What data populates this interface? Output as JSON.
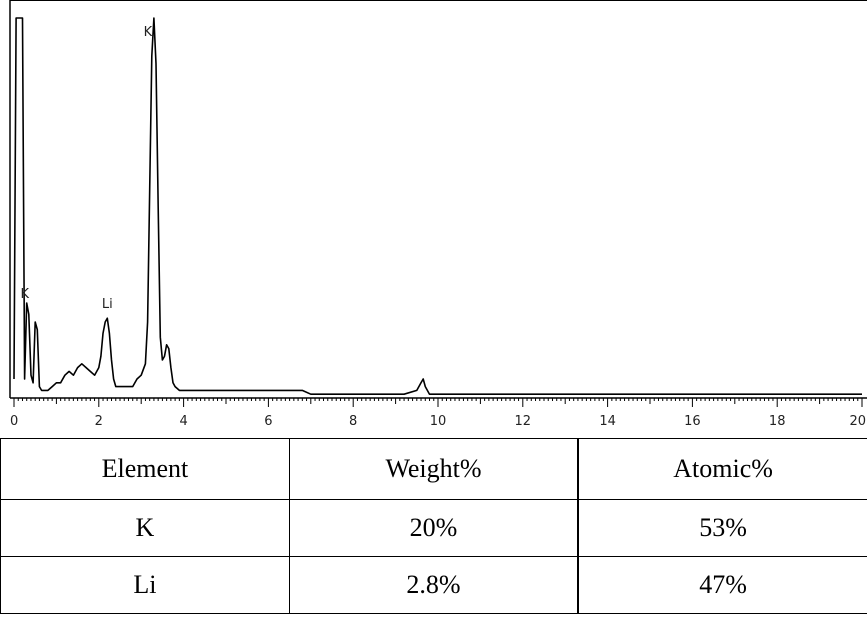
{
  "chart_data": {
    "type": "line",
    "xlim": [
      0,
      20
    ],
    "x_ticks": [
      "0",
      "2",
      "4",
      "6",
      "8",
      "10",
      "12",
      "14",
      "16",
      "18",
      "20"
    ],
    "grid": false,
    "peak_labels": [
      {
        "text": "K",
        "x": 0.3
      },
      {
        "text": "Li",
        "x": 2.2
      },
      {
        "text": "K",
        "x": 3.3
      }
    ],
    "series": [
      {
        "x": [
          0.0,
          0.05,
          0.1,
          0.15,
          0.2,
          0.25,
          0.3,
          0.35,
          0.4,
          0.45,
          0.5,
          0.55,
          0.6,
          0.65,
          0.7,
          0.8,
          0.9,
          1.0,
          1.1,
          1.2,
          1.3,
          1.4,
          1.5,
          1.6,
          1.7,
          1.8,
          1.9,
          2.0,
          2.05,
          2.1,
          2.15,
          2.2,
          2.25,
          2.3,
          2.35,
          2.4,
          2.5,
          2.6,
          2.7,
          2.8,
          2.9,
          3.0,
          3.1,
          3.15,
          3.2,
          3.25,
          3.3,
          3.35,
          3.4,
          3.45,
          3.5,
          3.55,
          3.6,
          3.65,
          3.7,
          3.75,
          3.8,
          3.9,
          4.0,
          4.2,
          4.4,
          4.6,
          4.8,
          5.0,
          5.3,
          5.6,
          6.0,
          6.4,
          6.8,
          7.0,
          7.3,
          7.6,
          8.0,
          8.4,
          8.8,
          9.2,
          9.5,
          9.6,
          9.65,
          9.7,
          9.8,
          10.0,
          10.5,
          11.0,
          11.5,
          12.0,
          12.5,
          13.0,
          13.5,
          14.0,
          14.5,
          15.0,
          15.5,
          16.0,
          16.5,
          17.0,
          17.5,
          18.0,
          18.5,
          19.0,
          19.5,
          20.0
        ],
        "y": [
          5,
          100,
          100,
          100,
          100,
          5,
          25,
          22,
          6,
          4,
          20,
          18,
          3,
          2,
          2,
          2,
          3,
          4,
          4,
          6,
          7,
          6,
          8,
          9,
          8,
          7,
          6,
          8,
          11,
          17,
          20,
          21,
          17,
          10,
          5,
          3,
          3,
          3,
          3,
          3,
          5,
          6,
          9,
          20,
          55,
          90,
          100,
          88,
          50,
          16,
          10,
          11,
          14,
          13,
          8,
          4,
          3,
          2,
          2,
          2,
          2,
          2,
          2,
          2,
          2,
          2,
          2,
          2,
          2,
          1,
          1,
          1,
          1,
          1,
          1,
          1,
          2,
          4,
          5,
          3,
          1,
          1,
          1,
          1,
          1,
          1,
          1,
          1,
          1,
          1,
          1,
          1,
          1,
          1,
          1,
          1,
          1,
          1,
          1,
          1,
          1,
          1
        ]
      }
    ]
  },
  "table": {
    "headers": [
      "Element",
      "Weight%",
      "Atomic%"
    ],
    "rows": [
      [
        "K",
        "20%",
        "53%"
      ],
      [
        "Li",
        "2.8%",
        "47%"
      ]
    ]
  }
}
